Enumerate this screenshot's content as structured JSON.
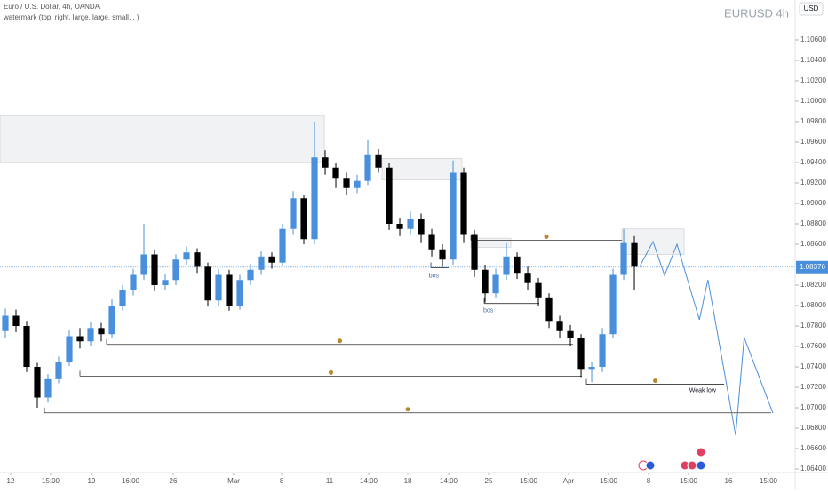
{
  "chart_data": {
    "type": "candlestick",
    "title": "Euro / U.S. Dollar, 4h, OANDA",
    "subtitle": "watermark (top, right, large, large, small, , )",
    "symbol_label": "EURUSD 4h",
    "currency": "USD",
    "bull_color": "#4a8fdb",
    "bear_color": "#000000",
    "open": [
      1.0775,
      1.079,
      1.078,
      1.074,
      1.071,
      1.0728,
      1.0745,
      1.077,
      1.0765,
      1.0778,
      1.0772,
      1.08,
      1.0815,
      1.083,
      1.085,
      1.082,
      1.0825,
      1.0845,
      1.0852,
      1.0838,
      1.0805,
      1.083,
      1.08,
      1.0825,
      1.0835,
      1.0848,
      1.0842,
      1.0875,
      1.0905,
      1.0865,
      1.0945,
      1.0935,
      1.0925,
      1.0915,
      1.0922,
      1.0948,
      1.0935,
      1.088,
      1.0875,
      1.0885,
      1.087,
      1.0855,
      1.0845,
      1.093,
      1.087,
      1.0835,
      1.0812,
      1.083,
      1.0848,
      1.0832,
      1.0822,
      1.0808,
      1.0785,
      1.0775,
      1.0768,
      1.0738,
      1.074,
      1.0772,
      1.083,
      1.0862
    ],
    "high": [
      1.0797,
      1.0796,
      1.0785,
      1.0744,
      1.0733,
      1.075,
      1.0776,
      1.0778,
      1.0784,
      1.0783,
      1.0806,
      1.082,
      1.0836,
      1.088,
      1.0855,
      1.0831,
      1.085,
      1.0858,
      1.0856,
      1.0842,
      1.0836,
      1.0835,
      1.083,
      1.0841,
      1.0853,
      1.0852,
      1.088,
      1.0912,
      1.0908,
      1.098,
      1.0952,
      1.094,
      1.093,
      1.0928,
      1.0962,
      1.0953,
      1.094,
      1.0886,
      1.0892,
      1.089,
      1.0875,
      1.086,
      1.0942,
      1.0935,
      1.0874,
      1.084,
      1.0836,
      1.0862,
      1.0852,
      1.0838,
      1.0827,
      1.0812,
      1.079,
      1.0781,
      1.0772,
      1.0745,
      1.0778,
      1.0836,
      1.0875,
      1.0868
    ],
    "low": [
      1.0768,
      1.0774,
      1.0735,
      1.07,
      1.0705,
      1.0724,
      1.0741,
      1.0758,
      1.076,
      1.0765,
      1.0768,
      1.0795,
      1.081,
      1.0825,
      1.0814,
      1.0815,
      1.082,
      1.084,
      1.0832,
      1.0799,
      1.08,
      1.0795,
      1.0796,
      1.082,
      1.083,
      1.0836,
      1.0838,
      1.087,
      1.086,
      1.086,
      1.0928,
      1.0915,
      1.0908,
      1.091,
      1.0918,
      1.093,
      1.0874,
      1.0868,
      1.087,
      1.0862,
      1.0848,
      1.0838,
      1.084,
      1.0862,
      1.0828,
      1.0803,
      1.0808,
      1.0825,
      1.0826,
      1.0815,
      1.08,
      1.0778,
      1.0768,
      1.076,
      1.073,
      1.0725,
      1.0735,
      1.0768,
      1.0825,
      1.0815
    ],
    "close": [
      1.079,
      1.078,
      1.074,
      1.071,
      1.0728,
      1.0745,
      1.077,
      1.0765,
      1.0778,
      1.0772,
      1.08,
      1.0815,
      1.083,
      1.085,
      1.082,
      1.0825,
      1.0845,
      1.0852,
      1.0838,
      1.0805,
      1.083,
      1.08,
      1.0825,
      1.0835,
      1.0848,
      1.0842,
      1.0875,
      1.0905,
      1.0865,
      1.0945,
      1.0935,
      1.0925,
      1.0915,
      1.0922,
      1.0948,
      1.0935,
      1.088,
      1.0875,
      1.0885,
      1.087,
      1.0855,
      1.0845,
      1.093,
      1.087,
      1.0835,
      1.0812,
      1.083,
      1.0848,
      1.0832,
      1.0822,
      1.0808,
      1.0785,
      1.0775,
      1.0768,
      1.0738,
      1.074,
      1.0772,
      1.083,
      1.0862,
      1.0838
    ],
    "xlim": [
      -0.5,
      74.08
    ],
    "ylim": [
      1.06296,
      1.10991
    ],
    "xticks": [
      {
        "value": 0.5,
        "label": "12"
      },
      {
        "value": 4.25,
        "label": "15:00"
      },
      {
        "value": 8.08,
        "label": "19"
      },
      {
        "value": 11.75,
        "label": "16:00"
      },
      {
        "value": 15.75,
        "label": "26"
      },
      {
        "value": 21.42,
        "label": "Mar"
      },
      {
        "value": 25.92,
        "label": "8"
      },
      {
        "value": 30.42,
        "label": "11"
      },
      {
        "value": 34.08,
        "label": "14:00"
      },
      {
        "value": 37.75,
        "label": "18"
      },
      {
        "value": 41.58,
        "label": "14:00"
      },
      {
        "value": 45.33,
        "label": "25"
      },
      {
        "value": 49.08,
        "label": "15:00"
      },
      {
        "value": 52.83,
        "label": "Apr"
      },
      {
        "value": 56.58,
        "label": "15:00"
      },
      {
        "value": 60.33,
        "label": "8"
      },
      {
        "value": 64.08,
        "label": "15:00"
      },
      {
        "value": 67.83,
        "label": "16"
      },
      {
        "value": 71.58,
        "label": "15:00"
      }
    ],
    "yticks": [
      {
        "value": 1.064,
        "label": "1.06400"
      },
      {
        "value": 1.066,
        "label": "1.06600"
      },
      {
        "value": 1.068,
        "label": "1.06800"
      },
      {
        "value": 1.07,
        "label": "1.07000"
      },
      {
        "value": 1.072,
        "label": "1.07200"
      },
      {
        "value": 1.074,
        "label": "1.07400"
      },
      {
        "value": 1.076,
        "label": "1.07600"
      },
      {
        "value": 1.078,
        "label": "1.07800"
      },
      {
        "value": 1.08,
        "label": "1.08000"
      },
      {
        "value": 1.082,
        "label": "1.08200"
      },
      {
        "value": 1.086,
        "label": "1.08600"
      },
      {
        "value": 1.088,
        "label": "1.08800"
      },
      {
        "value": 1.09,
        "label": "1.09000"
      },
      {
        "value": 1.092,
        "label": "1.09200"
      },
      {
        "value": 1.094,
        "label": "1.09400"
      },
      {
        "value": 1.096,
        "label": "1.09600"
      },
      {
        "value": 1.098,
        "label": "1.09800"
      },
      {
        "value": 1.1,
        "label": "1.10000"
      },
      {
        "value": 1.102,
        "label": "1.10200"
      },
      {
        "value": 1.104,
        "label": "1.10400"
      },
      {
        "value": 1.106,
        "label": "1.10600"
      }
    ],
    "current_price": {
      "value": 1.08376,
      "label": "1.08376"
    },
    "levels": [
      {
        "price": 1.0762,
        "x": [
          9.5,
          53.25
        ]
      },
      {
        "price": 1.0731,
        "x": [
          7,
          54.08
        ]
      },
      {
        "price": 1.0695,
        "x": [
          3.67,
          71.83
        ]
      },
      {
        "price": 1.0723,
        "x": [
          54.5,
          67.42
        ]
      },
      {
        "price": 1.0802,
        "x": [
          44.92,
          50.08
        ]
      },
      {
        "price": 1.0864,
        "x": [
          43.67,
          57.83
        ]
      },
      {
        "price": 1.0837,
        "x": [
          39.92,
          41.58
        ]
      }
    ],
    "zones": [
      {
        "x": [
          -0.5,
          29.92
        ],
        "y": [
          1.094,
          1.0986
        ]
      },
      {
        "x": [
          35.33,
          42.83
        ],
        "y": [
          1.0923,
          1.0944
        ]
      },
      {
        "x": [
          43.67,
          47.42
        ],
        "y": [
          1.0857,
          1.0866
        ]
      },
      {
        "x": [
          57.83,
          63.67
        ],
        "y": [
          1.085,
          1.0875
        ]
      }
    ],
    "projection": {
      "x": [
        59.5,
        60.75,
        61.83,
        63,
        65.1,
        65.9,
        68.5,
        69.3,
        72
      ],
      "y": [
        1.08383,
        1.08626,
        1.08296,
        1.086,
        1.07861,
        1.08252,
        1.0673,
        1.07687,
        1.06948
      ]
    },
    "annotations": [
      {
        "text": "bos",
        "x": 40.2,
        "y": 1.0829
      },
      {
        "text": "bos",
        "x": 45.3,
        "y": 1.0795
      },
      {
        "text": "Weak low",
        "x": 65.4,
        "y": 1.0717
      }
    ]
  }
}
